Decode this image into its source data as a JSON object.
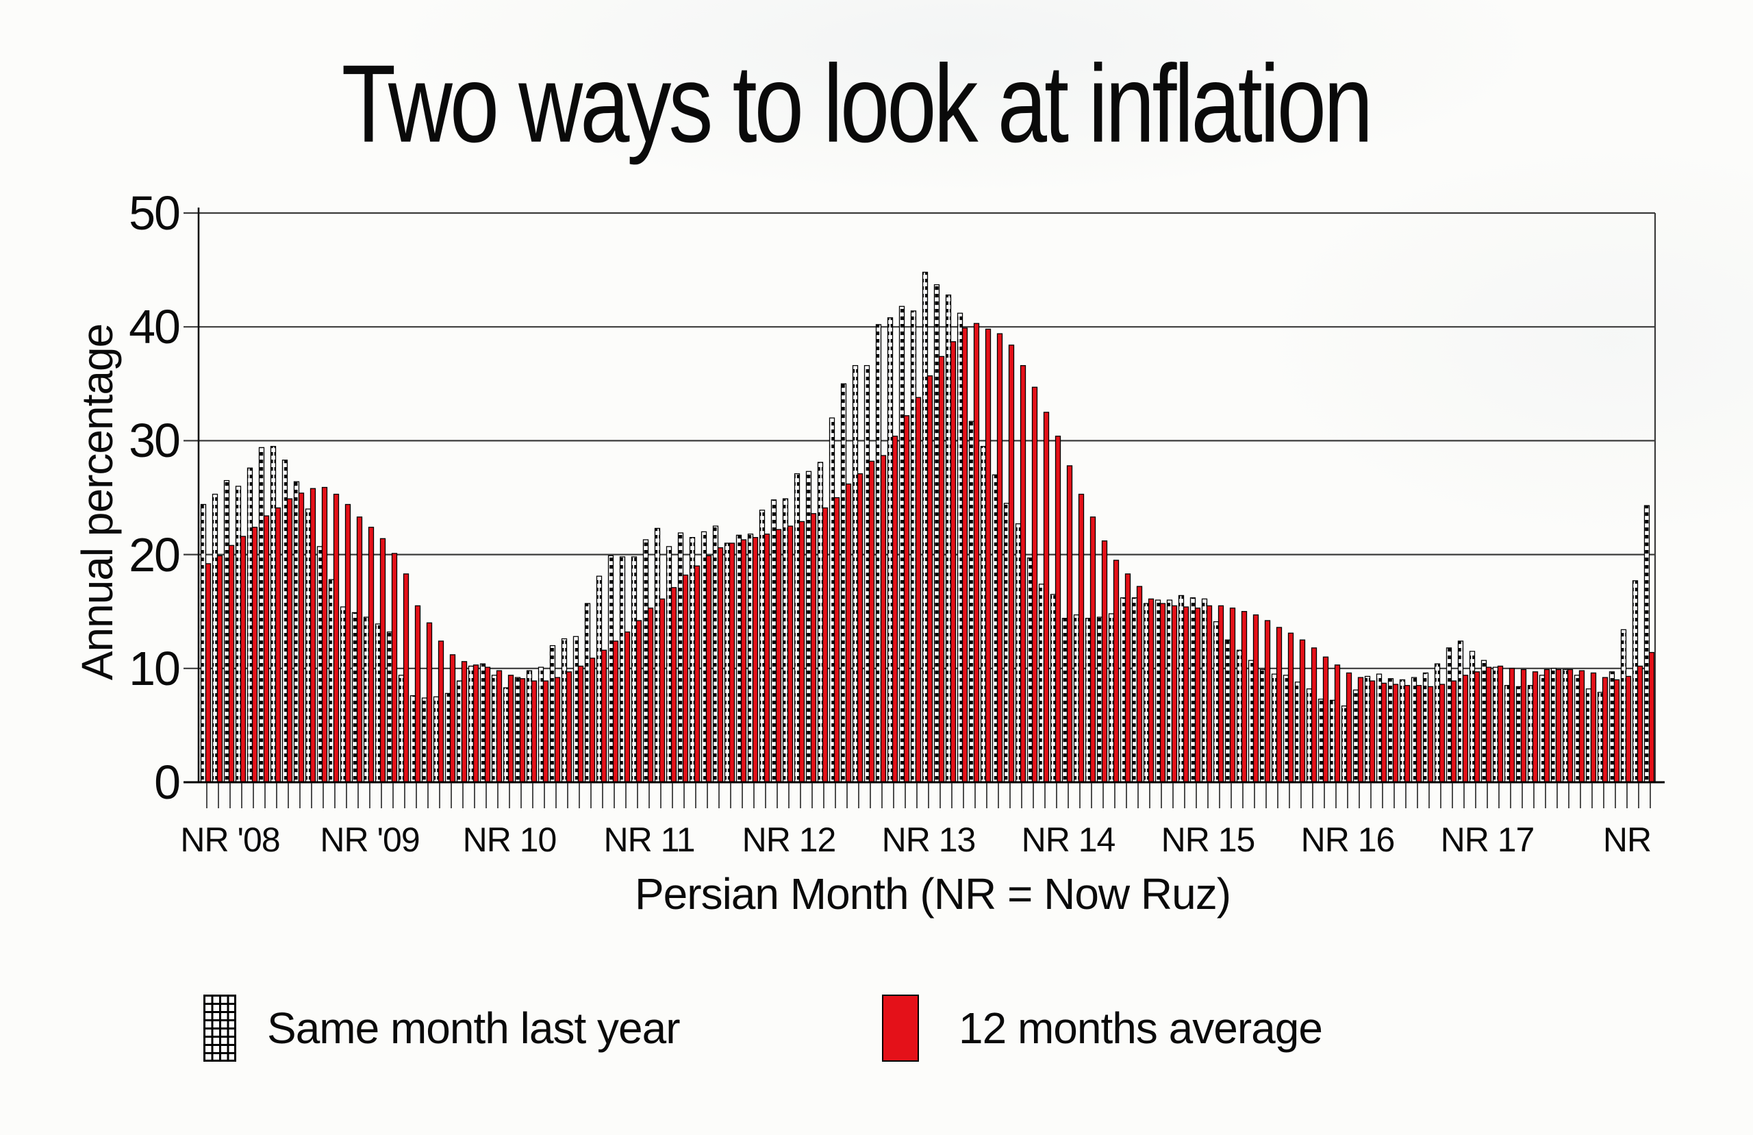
{
  "title": "Two ways to look at inflation",
  "y_axis": {
    "title": "Annual percentage",
    "ticks": [
      0,
      10,
      20,
      30,
      40,
      50
    ]
  },
  "x_axis": {
    "title": "Persian Month (NR = Now Ruz)",
    "labels": [
      {
        "label": "NR '08",
        "index": 2
      },
      {
        "label": "NR '09",
        "index": 14
      },
      {
        "label": "NR 10",
        "index": 26
      },
      {
        "label": "NR 11",
        "index": 38
      },
      {
        "label": "NR 12",
        "index": 50
      },
      {
        "label": "NR 13",
        "index": 62
      },
      {
        "label": "NR 14",
        "index": 74
      },
      {
        "label": "NR 15",
        "index": 86
      },
      {
        "label": "NR 16",
        "index": 98
      },
      {
        "label": "NR 17",
        "index": 110
      },
      {
        "label": "NR",
        "index": 122
      }
    ]
  },
  "legend": [
    {
      "label": "Same month last year",
      "swatch": "checker-hatch"
    },
    {
      "label": "12 months average",
      "swatch": "solid-red"
    }
  ],
  "colors": {
    "bar_red": "#e41119",
    "bar_hatch_bg": "#ffffff",
    "bar_border": "#000000",
    "grid": "#3b3b3b",
    "axis": "#111111",
    "paper": "#fcfcfa"
  },
  "chart_data": {
    "type": "bar",
    "title": "Two ways to look at inflation",
    "xlabel": "Persian Month (NR = Now Ruz)",
    "ylabel": "Annual percentage",
    "ylim": [
      0,
      50
    ],
    "grid": "horizontal",
    "n_months": 125,
    "x_unit": "monthly bars; NR (Now Ruz / Persian new year) every 12 bars",
    "nr_indices": [
      2,
      14,
      26,
      38,
      50,
      62,
      74,
      86,
      98,
      110,
      122
    ],
    "legend_position": "bottom",
    "series": [
      {
        "name": "Same month last year",
        "style": "checker-hatch",
        "values": [
          24.4,
          25.3,
          26.5,
          26.0,
          27.6,
          29.4,
          29.5,
          28.3,
          26.4,
          24.0,
          20.7,
          17.8,
          15.4,
          14.9,
          14.5,
          13.9,
          13.2,
          9.4,
          7.6,
          7.4,
          7.5,
          7.8,
          8.9,
          10.2,
          10.4,
          9.4,
          8.3,
          9.2,
          9.8,
          10.1,
          12.0,
          12.6,
          12.8,
          15.7,
          18.1,
          19.9,
          19.8,
          19.8,
          21.3,
          22.3,
          20.7,
          21.9,
          21.5,
          22.0,
          22.5,
          21.0,
          21.7,
          21.8,
          23.9,
          24.8,
          24.9,
          27.1,
          27.3,
          28.1,
          32.0,
          35.0,
          36.6,
          36.6,
          40.2,
          40.8,
          41.8,
          41.4,
          44.8,
          43.7,
          42.8,
          41.2,
          31.7,
          29.5,
          27.0,
          24.5,
          22.7,
          19.7,
          17.4,
          16.5,
          14.4,
          14.7,
          14.4,
          14.5,
          14.8,
          16.2,
          16.2,
          15.7,
          16.0,
          16.0,
          16.4,
          16.2,
          16.1,
          14.1,
          12.5,
          11.6,
          10.7,
          9.9,
          9.5,
          9.4,
          8.8,
          8.2,
          7.3,
          7.2,
          6.7,
          8.1,
          9.3,
          9.5,
          9.1,
          9.0,
          9.2,
          9.6,
          10.4,
          11.8,
          12.4,
          11.5,
          10.7,
          10.1,
          8.5,
          8.4,
          8.5,
          9.4,
          10.0,
          9.9,
          9.4,
          8.2,
          7.9,
          9.7,
          13.4,
          17.7,
          24.3
        ]
      },
      {
        "name": "12 months average",
        "style": "solid-red",
        "values": [
          19.2,
          19.9,
          20.8,
          21.6,
          22.4,
          23.4,
          24.1,
          24.9,
          25.4,
          25.8,
          25.9,
          25.3,
          24.4,
          23.3,
          22.4,
          21.4,
          20.1,
          18.3,
          15.5,
          14.0,
          12.4,
          11.2,
          10.6,
          10.3,
          10.1,
          9.8,
          9.4,
          9.1,
          8.9,
          8.9,
          9.2,
          9.7,
          10.2,
          10.9,
          11.6,
          12.4,
          13.2,
          14.2,
          15.3,
          16.1,
          17.1,
          18.2,
          19.0,
          19.9,
          20.6,
          21.0,
          21.3,
          21.5,
          21.8,
          22.2,
          22.5,
          22.9,
          23.6,
          24.1,
          25.0,
          26.2,
          27.1,
          28.2,
          28.7,
          30.4,
          32.2,
          33.8,
          35.7,
          37.4,
          38.7,
          39.9,
          40.3,
          39.8,
          39.4,
          38.4,
          36.6,
          34.7,
          32.5,
          30.4,
          27.8,
          25.3,
          23.3,
          21.2,
          19.5,
          18.3,
          17.2,
          16.1,
          15.7,
          15.5,
          15.4,
          15.3,
          15.5,
          15.5,
          15.3,
          15.0,
          14.7,
          14.2,
          13.6,
          13.1,
          12.5,
          11.8,
          11.0,
          10.3,
          9.6,
          9.2,
          8.9,
          8.7,
          8.6,
          8.5,
          8.5,
          8.4,
          8.6,
          8.9,
          9.4,
          9.7,
          10.1,
          10.2,
          10.0,
          9.9,
          9.7,
          9.9,
          9.9,
          9.9,
          9.8,
          9.6,
          9.2,
          9.0,
          9.3,
          10.2,
          11.4
        ]
      }
    ]
  }
}
